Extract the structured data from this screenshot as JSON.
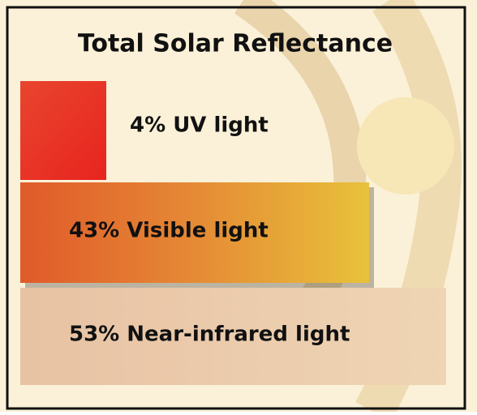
{
  "title": "Total Solar Reflectance",
  "bands": [
    {
      "label": "4% UV light"
    },
    {
      "label": "43% Visible light"
    },
    {
      "label": "53% Near-infrared light"
    }
  ]
}
